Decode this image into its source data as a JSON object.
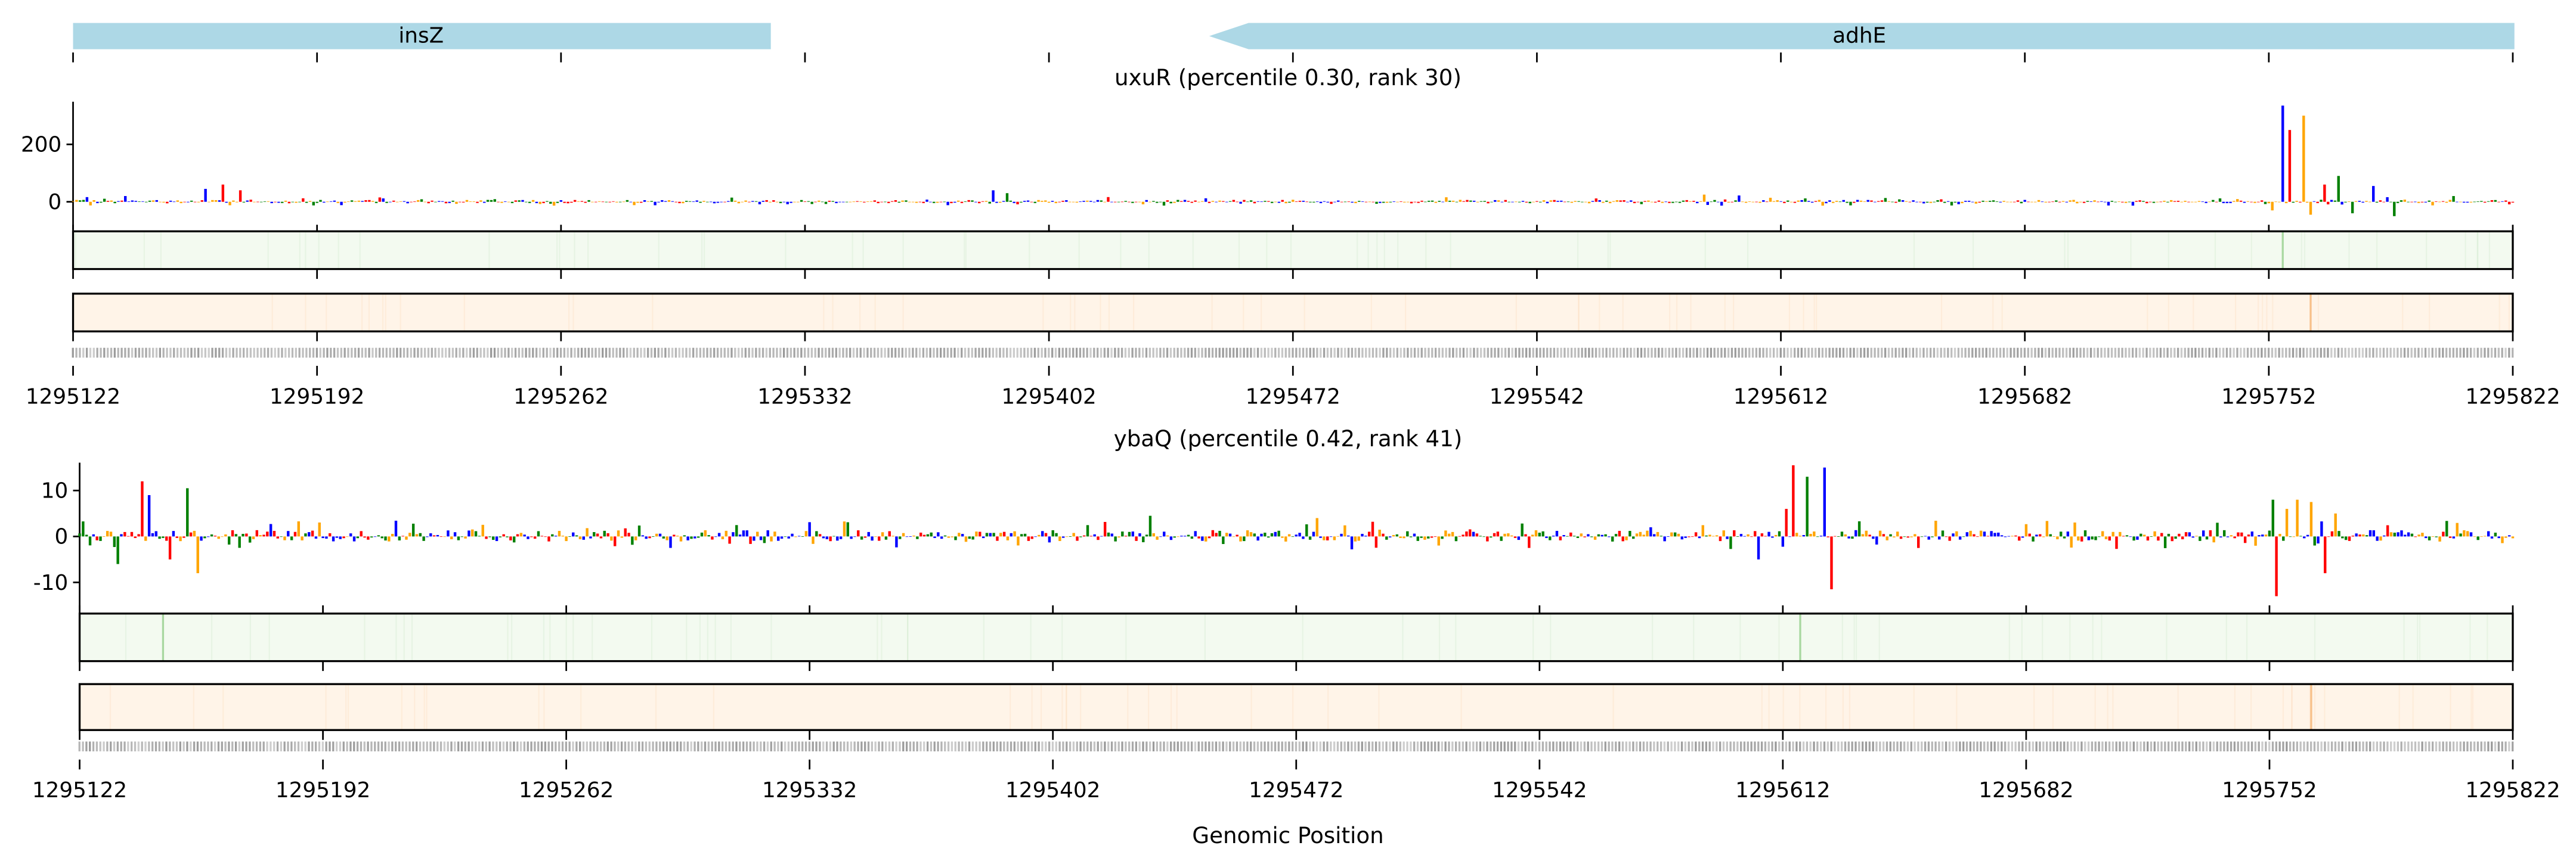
{
  "genes": [
    {
      "name": "insZ",
      "start": 1295122,
      "end": 1295322,
      "strand": "+"
    },
    {
      "name": "adhE",
      "start": 1295462,
      "end": 1295822,
      "strand": "-"
    }
  ],
  "colors": {
    "A": "#008000",
    "C": "#0000ff",
    "G": "#ffa500",
    "T": "#ff0000",
    "gene": "#add8e6",
    "green_track": "#f3faf0",
    "orange_track": "#fff4e8"
  },
  "x_ticks": [
    "1295122",
    "1295192",
    "1295262",
    "1295332",
    "1295402",
    "1295472",
    "1295542",
    "1295612",
    "1295682",
    "1295752",
    "1295822"
  ],
  "xlabel": "Genomic Position",
  "chart_data": [
    {
      "type": "bar",
      "title": "uxuR (percentile 0.30, rank 30)",
      "xlim": [
        1295122,
        1295822
      ],
      "ylim": [
        -100,
        340
      ],
      "y_ticks": [
        "200",
        "0"
      ],
      "y_tick_values": [
        200,
        0
      ],
      "noise_amplitude": 12,
      "peaks": [
        {
          "x": 1295137,
          "y": 20
        },
        {
          "x": 1295160,
          "y": 45
        },
        {
          "x": 1295165,
          "y": 60
        },
        {
          "x": 1295170,
          "y": 40
        },
        {
          "x": 1295386,
          "y": 40
        },
        {
          "x": 1295390,
          "y": 30
        },
        {
          "x": 1295590,
          "y": 25
        },
        {
          "x": 1295600,
          "y": 22
        },
        {
          "x": 1295753,
          "y": -30
        },
        {
          "x": 1295756,
          "y": 335
        },
        {
          "x": 1295758,
          "y": 250
        },
        {
          "x": 1295762,
          "y": 300
        },
        {
          "x": 1295764,
          "y": -45
        },
        {
          "x": 1295768,
          "y": 60
        },
        {
          "x": 1295772,
          "y": 90
        },
        {
          "x": 1295776,
          "y": -40
        },
        {
          "x": 1295782,
          "y": 55
        },
        {
          "x": 1295788,
          "y": -50
        },
        {
          "x": 1295805,
          "y": 20
        }
      ],
      "heat_marks": {
        "green": [
          1295756
        ],
        "orange": [
          1295764
        ]
      }
    },
    {
      "type": "bar",
      "title": "ybaQ (percentile 0.42, rank 41)",
      "xlim": [
        1295122,
        1295822
      ],
      "ylim": [
        -16,
        16
      ],
      "y_ticks": [
        "10",
        "0",
        "-10"
      ],
      "y_tick_values": [
        10,
        0,
        -10
      ],
      "noise_amplitude": 2.5,
      "peaks": [
        {
          "x": 1295133,
          "y": -6
        },
        {
          "x": 1295140,
          "y": 12
        },
        {
          "x": 1295142,
          "y": 9
        },
        {
          "x": 1295148,
          "y": -5
        },
        {
          "x": 1295153,
          "y": 10.5
        },
        {
          "x": 1295156,
          "y": -8
        },
        {
          "x": 1295430,
          "y": 4.5
        },
        {
          "x": 1295478,
          "y": 4
        },
        {
          "x": 1295605,
          "y": -5
        },
        {
          "x": 1295613,
          "y": 6
        },
        {
          "x": 1295615,
          "y": 15.5
        },
        {
          "x": 1295619,
          "y": 13
        },
        {
          "x": 1295624,
          "y": 15
        },
        {
          "x": 1295626,
          "y": -11.5
        },
        {
          "x": 1295753,
          "y": 8
        },
        {
          "x": 1295754,
          "y": -13
        },
        {
          "x": 1295757,
          "y": 6
        },
        {
          "x": 1295760,
          "y": 8
        },
        {
          "x": 1295764,
          "y": 7.5
        },
        {
          "x": 1295768,
          "y": -8
        },
        {
          "x": 1295771,
          "y": 5
        }
      ],
      "heat_marks": {
        "green": [
          1295146,
          1295617
        ],
        "orange": [
          1295764
        ]
      }
    }
  ]
}
